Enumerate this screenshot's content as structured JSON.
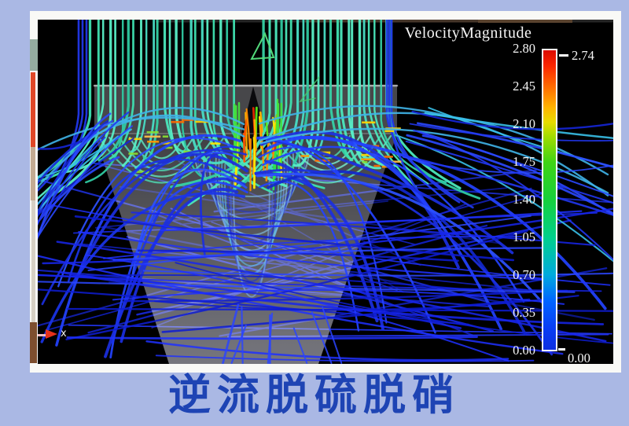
{
  "legend": {
    "title": "VelocityMagnitude",
    "ticks": [
      "2.80",
      "2.45",
      "2.10",
      "1.75",
      "1.40",
      "1.05",
      "0.70",
      "0.35",
      "0.00"
    ],
    "max_marker": "2.74",
    "min_marker": "0.00"
  },
  "axis": {
    "label": "x"
  },
  "caption": {
    "text": "逆流脱硫脱硝"
  },
  "colors": {
    "page_background": "#aab8e4",
    "frame": "#f9f9f6",
    "viewport_background": "#000000",
    "caption_text": "#1e44b4",
    "legend_text": "#f5f5f5",
    "colorbar_border": "#ffffff",
    "axis_arrow": "#e63119"
  },
  "chart_data": {
    "type": "heatmap",
    "subtype": "cfd-streamline-visualization",
    "title": "VelocityMagnitude",
    "caption": "逆流脱硫脱硝",
    "legend_position": "right",
    "colorbar": {
      "label": "VelocityMagnitude",
      "orientation": "vertical",
      "range": [
        0.0,
        2.8
      ],
      "ticks": [
        2.8,
        2.45,
        2.1,
        1.75,
        1.4,
        1.05,
        0.7,
        0.35,
        0.0
      ],
      "tick_labels": [
        "2.80",
        "2.45",
        "2.10",
        "1.75",
        "1.40",
        "1.05",
        "0.70",
        "0.35",
        "0.00"
      ],
      "data_max": 2.74,
      "data_min": 0.0,
      "gradient_top_to_bottom": [
        "#db0b00",
        "#ff6f00",
        "#e8dc00",
        "#3ed414",
        "#16d03c",
        "#00d08c",
        "#00aadd",
        "#0063ff",
        "#0c2fe0"
      ]
    },
    "axes_triad": {
      "x_label": "x"
    }
  }
}
